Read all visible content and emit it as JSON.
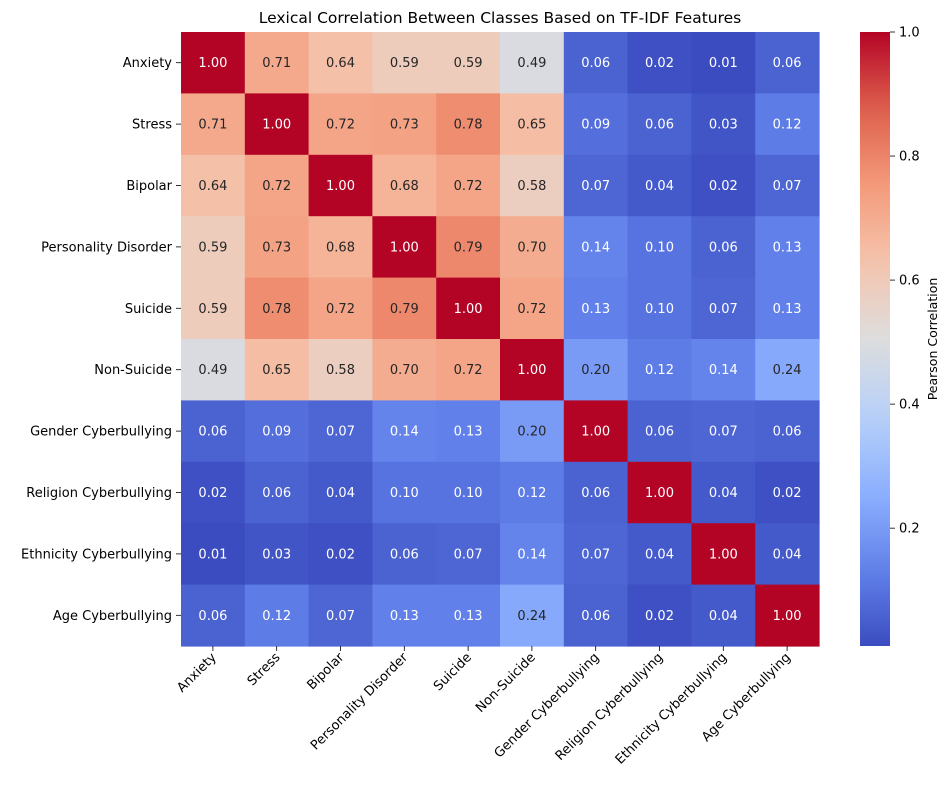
{
  "chart_data": {
    "type": "heatmap",
    "title": "Lexical Correlation Between Classes Based on TF-IDF Features",
    "rows": [
      "Anxiety",
      "Stress",
      "Bipolar",
      "Personality Disorder",
      "Suicide",
      "Non-Suicide",
      "Gender Cyberbullying",
      "Religion Cyberbullying",
      "Ethnicity Cyberbullying",
      "Age Cyberbullying"
    ],
    "columns": [
      "Anxiety",
      "Stress",
      "Bipolar",
      "Personality Disorder",
      "Suicide",
      "Non-Suicide",
      "Gender Cyberbullying",
      "Religion Cyberbullying",
      "Ethnicity Cyberbullying",
      "Age Cyberbullying"
    ],
    "values": [
      [
        1.0,
        0.71,
        0.64,
        0.59,
        0.59,
        0.49,
        0.06,
        0.02,
        0.01,
        0.06
      ],
      [
        0.71,
        1.0,
        0.72,
        0.73,
        0.78,
        0.65,
        0.09,
        0.06,
        0.03,
        0.12
      ],
      [
        0.64,
        0.72,
        1.0,
        0.68,
        0.72,
        0.58,
        0.07,
        0.04,
        0.02,
        0.07
      ],
      [
        0.59,
        0.73,
        0.68,
        1.0,
        0.79,
        0.7,
        0.14,
        0.1,
        0.06,
        0.13
      ],
      [
        0.59,
        0.78,
        0.72,
        0.79,
        1.0,
        0.72,
        0.13,
        0.1,
        0.07,
        0.13
      ],
      [
        0.49,
        0.65,
        0.58,
        0.7,
        0.72,
        1.0,
        0.2,
        0.12,
        0.14,
        0.24
      ],
      [
        0.06,
        0.09,
        0.07,
        0.14,
        0.13,
        0.2,
        1.0,
        0.06,
        0.07,
        0.06
      ],
      [
        0.02,
        0.06,
        0.04,
        0.1,
        0.1,
        0.12,
        0.06,
        1.0,
        0.04,
        0.02
      ],
      [
        0.01,
        0.03,
        0.02,
        0.06,
        0.07,
        0.14,
        0.07,
        0.04,
        1.0,
        0.04
      ],
      [
        0.06,
        0.12,
        0.07,
        0.13,
        0.13,
        0.24,
        0.06,
        0.02,
        0.04,
        1.0
      ]
    ],
    "value_format": "2 decimals",
    "colormap": "coolwarm",
    "color_range": [
      0.01,
      1.0
    ],
    "colorbar": {
      "label": "Pearson Correlation",
      "ticks": [
        0.2,
        0.4,
        0.6,
        0.8,
        1.0
      ],
      "tick_labels": [
        "0.2",
        "0.4",
        "0.6",
        "0.8",
        "1.0"
      ]
    }
  }
}
